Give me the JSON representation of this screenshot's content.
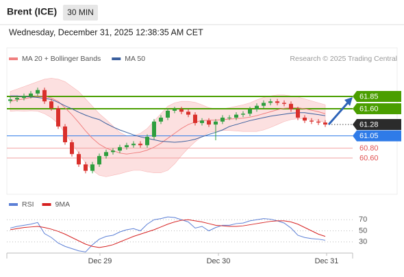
{
  "header": {
    "title": "Brent (ICE)",
    "interval": "30 MIN",
    "timestamp": "Wednesday, December 31, 2025 12:38:35 AM CET"
  },
  "chart_data": [
    {
      "type": "candlestick",
      "legend": [
        {
          "name": "MA 20 + Bollinger Bands",
          "color": "#f08080"
        },
        {
          "name": "MA 50",
          "color": "#3a5f9e"
        }
      ],
      "annotation": "Research © 2025 Trading Central",
      "up_color": "#2e9e3e",
      "down_color": "#d9302c",
      "xlim": [
        -0.5,
        49.5
      ],
      "ylim": [
        59.85,
        62.42
      ],
      "xticks": [
        {
          "value": 13.1,
          "label": "Dec 29"
        },
        {
          "value": 30.4,
          "label": "Dec 30"
        },
        {
          "value": 46.2,
          "label": "Dec 31"
        }
      ],
      "open": [
        61.76,
        61.79,
        61.82,
        61.86,
        61.91,
        61.98,
        61.75,
        61.61,
        61.24,
        60.92,
        60.68,
        60.47,
        60.34,
        60.47,
        60.64,
        60.72,
        60.75,
        60.82,
        60.86,
        60.89,
        60.86,
        61.03,
        61.34,
        61.42,
        61.56,
        61.59,
        61.54,
        61.48,
        61.31,
        61.36,
        61.28,
        61.34,
        61.42,
        61.42,
        61.48,
        61.5,
        61.59,
        61.66,
        61.72,
        61.75,
        61.72,
        61.7,
        61.59,
        61.42,
        61.36,
        61.34,
        61.32
      ],
      "high": [
        61.84,
        61.87,
        61.91,
        61.96,
        62.03,
        62.03,
        61.8,
        61.66,
        61.29,
        60.97,
        60.73,
        60.52,
        60.52,
        60.69,
        60.77,
        60.8,
        60.87,
        60.91,
        60.94,
        60.94,
        61.08,
        61.39,
        61.47,
        61.61,
        61.64,
        61.64,
        61.59,
        61.53,
        61.41,
        61.41,
        61.39,
        61.47,
        61.47,
        61.53,
        61.55,
        61.64,
        61.71,
        61.77,
        61.8,
        61.8,
        61.77,
        61.75,
        61.64,
        61.47,
        61.41,
        61.39,
        61.37
      ],
      "low": [
        61.71,
        61.74,
        61.77,
        61.81,
        61.86,
        61.7,
        61.56,
        61.19,
        60.87,
        60.63,
        60.42,
        60.29,
        60.29,
        60.42,
        60.59,
        60.67,
        60.7,
        60.77,
        60.81,
        60.81,
        60.81,
        60.98,
        61.29,
        61.37,
        61.51,
        61.49,
        61.43,
        61.26,
        61.26,
        61.23,
        60.96,
        61.29,
        61.37,
        61.37,
        61.43,
        61.45,
        61.54,
        61.61,
        61.67,
        61.67,
        61.65,
        61.54,
        61.37,
        61.31,
        61.29,
        61.27,
        61.23
      ],
      "close": [
        61.79,
        61.82,
        61.86,
        61.91,
        61.98,
        61.75,
        61.61,
        61.24,
        60.92,
        60.68,
        60.47,
        60.34,
        60.47,
        60.64,
        60.72,
        60.75,
        60.82,
        60.86,
        60.89,
        60.86,
        61.03,
        61.34,
        61.42,
        61.56,
        61.59,
        61.54,
        61.48,
        61.31,
        61.36,
        61.28,
        61.34,
        61.42,
        61.42,
        61.48,
        61.5,
        61.59,
        61.66,
        61.72,
        61.75,
        61.72,
        61.7,
        61.59,
        61.42,
        61.36,
        61.34,
        61.32,
        61.28
      ],
      "ma20": [
        61.75,
        61.78,
        61.8,
        61.83,
        61.85,
        61.85,
        61.82,
        61.75,
        61.62,
        61.48,
        61.32,
        61.15,
        61.0,
        60.88,
        60.8,
        60.75,
        60.7,
        60.68,
        60.7,
        60.72,
        60.76,
        60.82,
        60.9,
        61.0,
        61.1,
        61.2,
        61.28,
        61.33,
        61.36,
        61.37,
        61.37,
        61.38,
        61.39,
        61.4,
        61.41,
        61.43,
        61.46,
        61.5,
        61.54,
        61.58,
        61.61,
        61.62,
        61.62,
        61.6,
        61.57,
        61.54,
        61.5
      ],
      "upper_band": [
        61.95,
        62.0,
        62.05,
        62.1,
        62.15,
        62.2,
        62.22,
        62.2,
        62.15,
        62.05,
        61.95,
        61.8,
        61.65,
        61.5,
        61.38,
        61.25,
        61.12,
        61.05,
        61.05,
        61.1,
        61.2,
        61.35,
        61.5,
        61.65,
        61.72,
        61.75,
        61.75,
        61.73,
        61.68,
        61.62,
        61.6,
        61.6,
        61.62,
        61.65,
        61.68,
        61.72,
        61.78,
        61.83,
        61.86,
        61.88,
        61.88,
        61.86,
        61.84,
        61.8,
        61.76,
        61.72,
        61.68
      ],
      "lower_band": [
        61.55,
        61.56,
        61.55,
        61.56,
        61.55,
        61.5,
        61.42,
        61.3,
        61.1,
        60.9,
        60.7,
        60.5,
        60.35,
        60.25,
        60.22,
        60.25,
        60.28,
        60.32,
        60.35,
        60.35,
        60.32,
        60.3,
        60.3,
        60.35,
        60.48,
        60.65,
        60.8,
        60.93,
        61.04,
        61.12,
        61.14,
        61.16,
        61.16,
        61.15,
        61.14,
        61.14,
        61.14,
        61.17,
        61.22,
        61.28,
        61.34,
        61.38,
        61.4,
        61.4,
        61.38,
        61.36,
        61.32
      ],
      "ma50": [
        61.86,
        61.86,
        61.85,
        61.84,
        61.83,
        61.81,
        61.79,
        61.73,
        61.66,
        61.6,
        61.53,
        61.47,
        61.42,
        61.38,
        61.3,
        61.23,
        61.17,
        61.12,
        61.07,
        61.03,
        61.0,
        60.97,
        60.94,
        60.93,
        60.92,
        60.93,
        60.95,
        60.98,
        61.03,
        61.08,
        61.12,
        61.17,
        61.24,
        61.28,
        61.32,
        61.36,
        61.39,
        61.42,
        61.45,
        61.47,
        61.49,
        61.51,
        61.52,
        61.52,
        61.5,
        61.48,
        61.46
      ],
      "levels": [
        {
          "value": 61.85,
          "label": "61.85",
          "color": "#4a9e00",
          "style": "box"
        },
        {
          "value": 61.6,
          "label": "61.60",
          "color": "#4a9e00",
          "style": "box"
        },
        {
          "value": 61.28,
          "label": "61.28",
          "color": "#2b2b2b",
          "style": "dotted"
        },
        {
          "value": 61.05,
          "label": "61.05",
          "color": "#2f7be8",
          "style": "box"
        },
        {
          "value": 60.8,
          "label": "60.80",
          "color": "#e05050",
          "style": "text"
        },
        {
          "value": 60.6,
          "label": "60.60",
          "color": "#e05050",
          "style": "text"
        }
      ]
    },
    {
      "type": "line",
      "series": [
        {
          "name": "RSI",
          "color": "#5b7fd6",
          "values": [
            55,
            58,
            60,
            62,
            65,
            45,
            38,
            28,
            22,
            18,
            14,
            12,
            25,
            35,
            40,
            42,
            48,
            52,
            54,
            50,
            62,
            70,
            72,
            75,
            74,
            70,
            66,
            55,
            58,
            50,
            56,
            60,
            60,
            63,
            64,
            68,
            70,
            72,
            71,
            68,
            64,
            55,
            42,
            38,
            36,
            35,
            33
          ]
        },
        {
          "name": "9MA",
          "color": "#d62020",
          "values": [
            52,
            54,
            56,
            57,
            58,
            56,
            53,
            49,
            44,
            38,
            32,
            26,
            22,
            20,
            22,
            25,
            30,
            35,
            40,
            44,
            48,
            52,
            57,
            62,
            66,
            69,
            70,
            68,
            66,
            63,
            60,
            59,
            58,
            58,
            59,
            61,
            63,
            65,
            67,
            68,
            68,
            66,
            62,
            56,
            50,
            44,
            40
          ]
        }
      ],
      "xlim": [
        -0.5,
        49.5
      ],
      "ylim": [
        10,
        90
      ],
      "yticks": [
        70,
        50,
        30
      ]
    }
  ]
}
